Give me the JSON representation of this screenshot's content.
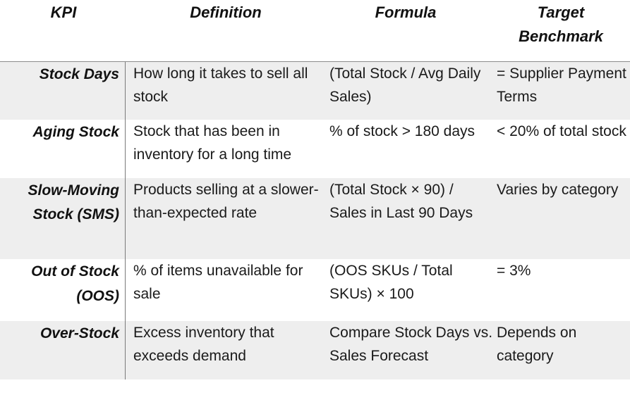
{
  "table": {
    "headers": {
      "kpi": "KPI",
      "definition": "Definition",
      "formula": "Formula",
      "target_line1": "Target",
      "target_line2": "Benchmark"
    },
    "rows": [
      {
        "kpi_line1": "Stock Days",
        "kpi_line2": "",
        "definition": "How long it takes to sell all stock",
        "formula": "(Total Stock / Avg Daily Sales)",
        "target": "= Supplier Payment Terms"
      },
      {
        "kpi_line1": "Aging Stock",
        "kpi_line2": "",
        "definition": "Stock that has been in inventory for a long time",
        "formula": "% of stock > 180 days",
        "target": "< 20% of total stock"
      },
      {
        "kpi_line1": "Slow-Moving",
        "kpi_line2": "Stock (SMS)",
        "definition": "Products selling at a slower-than-expected rate",
        "formula": "(Total Stock × 90) / Sales in Last 90 Days",
        "target": "Varies by category"
      },
      {
        "kpi_line1": "Out of Stock",
        "kpi_line2": "(OOS)",
        "definition": "% of items unavailable for sale",
        "formula": "(OOS SKUs / Total SKUs) × 100",
        "target": "= 3%"
      },
      {
        "kpi_line1": "Over-Stock",
        "kpi_line2": "",
        "definition": "Excess inventory that exceeds demand",
        "formula": "Compare Stock Days vs. Sales Forecast",
        "target": "Depends on category"
      }
    ]
  }
}
